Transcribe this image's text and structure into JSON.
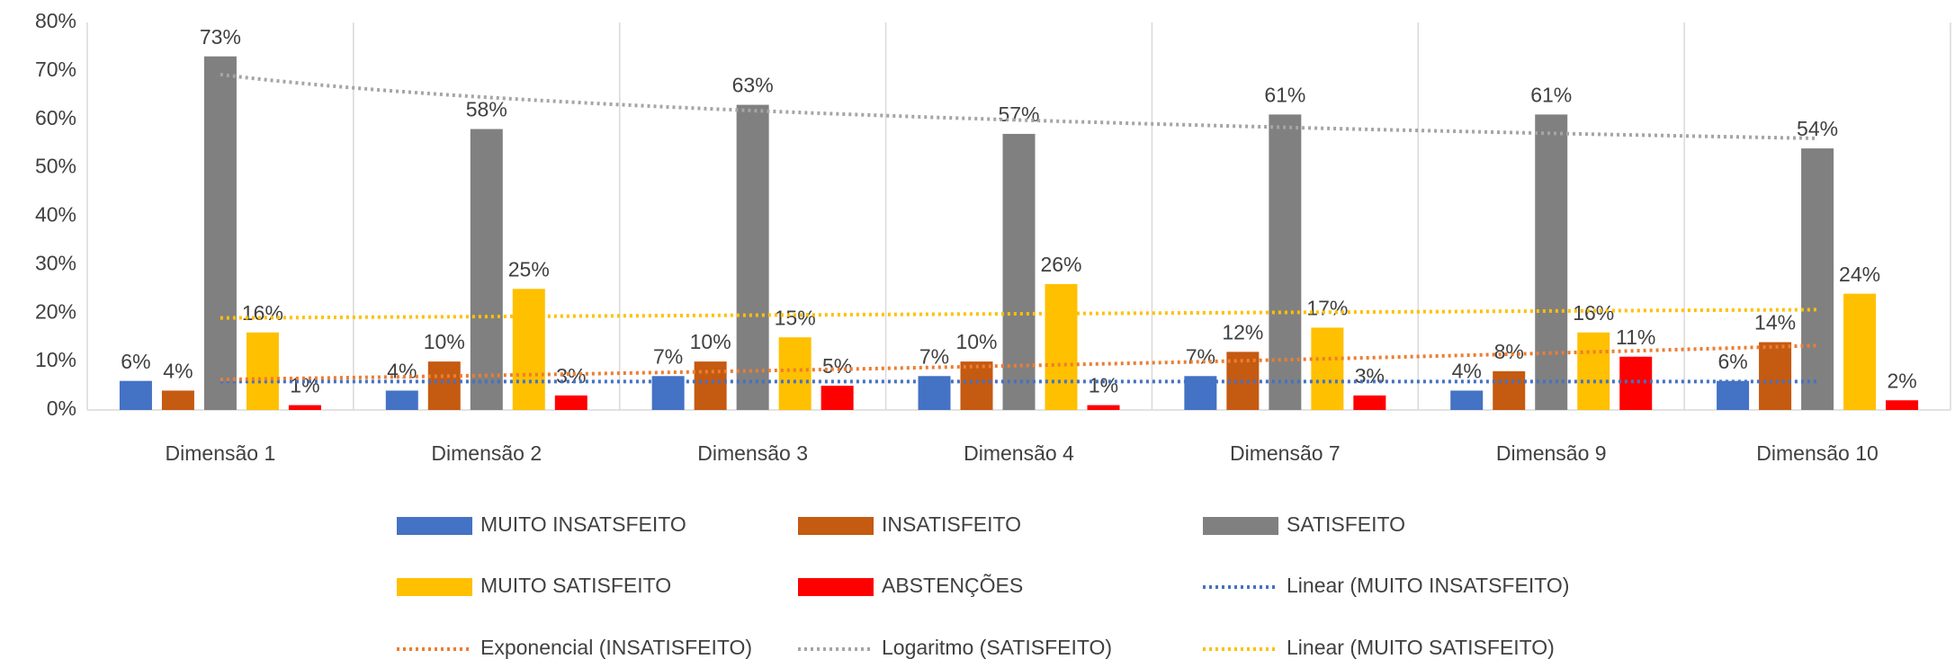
{
  "chart_data": {
    "type": "bar",
    "categories": [
      "Dimensão 1",
      "Dimensão 2",
      "Dimensão 3",
      "Dimensão 4",
      "Dimensão 7",
      "Dimensão 9",
      "Dimensão 10"
    ],
    "series": [
      {
        "name": "MUITO INSATSFEITO",
        "color": "#4472c4",
        "values": [
          6,
          4,
          7,
          7,
          7,
          4,
          6
        ],
        "value_labels": [
          "6%",
          "4%",
          "7%",
          "7%",
          "7%",
          "4%",
          "6%"
        ]
      },
      {
        "name": "INSATISFEITO",
        "color": "#c55a11",
        "values": [
          4,
          10,
          10,
          10,
          12,
          8,
          14
        ],
        "value_labels": [
          "4%",
          "10%",
          "10%",
          "10%",
          "12%",
          "8%",
          "14%"
        ]
      },
      {
        "name": "SATISFEITO",
        "color": "#808080",
        "values": [
          73,
          58,
          63,
          57,
          61,
          61,
          54
        ],
        "value_labels": [
          "73%",
          "58%",
          "63%",
          "57%",
          "61%",
          "61%",
          "54%"
        ]
      },
      {
        "name": "MUITO SATISFEITO",
        "color": "#ffc000",
        "values": [
          16,
          25,
          15,
          26,
          17,
          16,
          24
        ],
        "value_labels": [
          "16%",
          "25%",
          "15%",
          "26%",
          "17%",
          "16%",
          "24%"
        ]
      },
      {
        "name": "ABSTENÇÕES",
        "color": "#ff0000",
        "values": [
          1,
          3,
          5,
          1,
          3,
          11,
          2
        ],
        "value_labels": [
          "1%",
          "3%",
          "5%",
          "1%",
          "3%",
          "11%",
          "2%"
        ]
      }
    ],
    "trendlines": [
      {
        "name": "Linear (MUITO INSATSFEITO)",
        "series": 0,
        "kind": "linear",
        "color": "#4472c4"
      },
      {
        "name": "Exponencial (INSATISFEITO)",
        "series": 1,
        "kind": "exponential",
        "color": "#ed7d31"
      },
      {
        "name": "Logaritmo (SATISFEITO)",
        "series": 2,
        "kind": "logarithmic",
        "color": "#a5a5a5"
      },
      {
        "name": "Linear (MUITO SATISFEITO)",
        "series": 3,
        "kind": "linear",
        "color": "#ffc000"
      }
    ],
    "ylim": [
      0,
      80
    ],
    "yticks": [
      {
        "value": 0,
        "label": "0%"
      },
      {
        "value": 10,
        "label": "10%"
      },
      {
        "value": 20,
        "label": "20%"
      },
      {
        "value": 30,
        "label": "30%"
      },
      {
        "value": 40,
        "label": "40%"
      },
      {
        "value": 50,
        "label": "50%"
      },
      {
        "value": 60,
        "label": "60%"
      },
      {
        "value": 70,
        "label": "70%"
      },
      {
        "value": 80,
        "label": "80%"
      }
    ]
  }
}
